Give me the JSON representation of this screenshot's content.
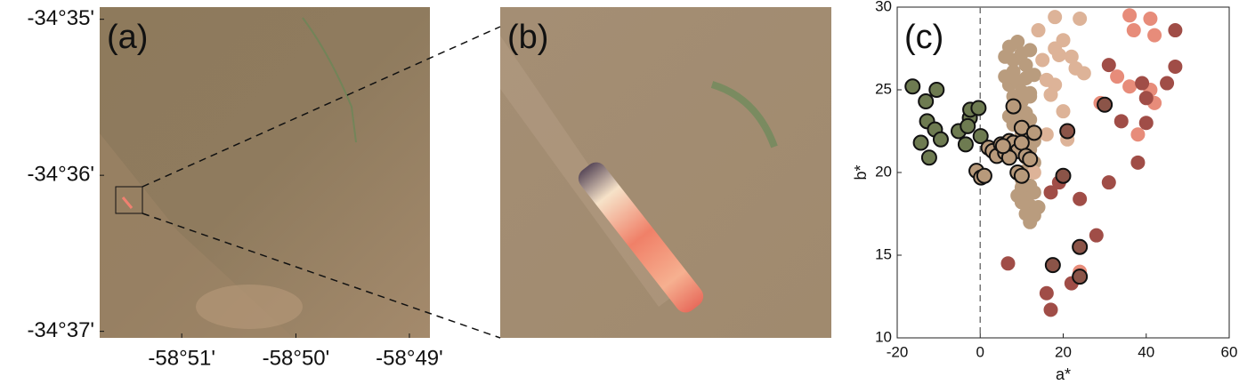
{
  "chart_data": [
    {
      "type": "image",
      "label": "(a)",
      "xlim": [
        -58.862,
        -58.8137
      ],
      "xticks": [
        {
          "value": -58.85,
          "label": "-58°51'"
        },
        {
          "value": -58.8333,
          "label": "-58°50'"
        },
        {
          "value": -58.8167,
          "label": "-58°49'"
        }
      ],
      "ylim": [
        -34.6174,
        -34.582
      ],
      "yticks": [
        {
          "value": -34.5833,
          "label": "-34°35'"
        },
        {
          "value": -34.6,
          "label": "-34°36'"
        },
        {
          "value": -34.6167,
          "label": "-34°37'"
        }
      ]
    },
    {
      "type": "image",
      "label": "(b)"
    },
    {
      "type": "scatter",
      "label": "(c)",
      "xlabel": "a*",
      "ylabel": "b*",
      "xlim": [
        -20,
        60
      ],
      "xticks": [
        -20,
        0,
        20,
        40,
        60
      ],
      "ylim": [
        10,
        30
      ],
      "yticks": [
        10,
        15,
        20,
        25,
        30
      ],
      "vline": 0,
      "series": [
        {
          "color": "#b99c7e",
          "edgecolor": "none",
          "x": [
            6,
            7,
            8,
            9,
            10,
            11,
            12,
            6,
            7,
            8,
            9,
            10,
            11,
            12,
            13,
            8,
            9,
            10,
            11,
            12,
            7,
            8,
            9,
            10,
            11,
            12,
            13,
            9,
            10,
            11,
            12,
            13,
            10,
            11,
            12,
            13,
            9,
            10,
            11,
            12,
            14,
            11,
            12,
            13,
            10
          ],
          "y": [
            27,
            27.6,
            26.8,
            27.9,
            27.2,
            26.5,
            27.4,
            25.8,
            25.3,
            26.1,
            25.5,
            24.9,
            25.7,
            24.6,
            25.9,
            24.6,
            23.8,
            24.3,
            23.6,
            24.8,
            23.4,
            22.9,
            23.1,
            23.7,
            22.8,
            23.2,
            21.9,
            21.6,
            22.3,
            20.9,
            21.4,
            20.6,
            19.6,
            20.1,
            19.2,
            18.8,
            18.6,
            19.1,
            18.4,
            18.0,
            17.9,
            17.5,
            17.0,
            17.4,
            18.2
          ]
        },
        {
          "color": "#ddb398",
          "edgecolor": "none",
          "x": [
            18,
            24,
            20,
            18,
            22,
            23,
            25,
            18,
            17,
            20,
            21,
            16,
            13,
            14,
            15,
            19,
            16
          ],
          "y": [
            29.4,
            29.3,
            28,
            27.5,
            27,
            26.3,
            26,
            25.3,
            24.7,
            23.7,
            22,
            22.3,
            20,
            28.6,
            26.8,
            27.1,
            25.6
          ]
        },
        {
          "color": "#e78c7a",
          "edgecolor": "none",
          "x": [
            36,
            41,
            42,
            37,
            33,
            36,
            41,
            38,
            42,
            29,
            24
          ],
          "y": [
            29.5,
            29.3,
            28.3,
            28.6,
            25.8,
            25.2,
            25,
            22.3,
            24.2,
            24.2,
            14
          ]
        },
        {
          "color": "#a04d47",
          "edgecolor": "none",
          "x": [
            31,
            47,
            47,
            45,
            39,
            40,
            34,
            40,
            38,
            31,
            19,
            17,
            24,
            28,
            22,
            16,
            17,
            6.7
          ],
          "y": [
            26.5,
            28.6,
            26.4,
            25.4,
            25.4,
            24.5,
            23.1,
            23,
            20.6,
            19.4,
            19.4,
            18.8,
            18.4,
            16.2,
            13.3,
            12.7,
            11.7,
            14.5
          ]
        },
        {
          "color": "#6e7b51",
          "edgecolor": "#111111",
          "x": [
            -16.3,
            -13.1,
            -10.5,
            -12.8,
            -10.9,
            -14.3,
            -9.5,
            -12.3,
            -5.2,
            -3.5,
            -2.5,
            -2.4,
            -0.4,
            0.1,
            -3
          ],
          "y": [
            25.2,
            24.3,
            25,
            23.1,
            22.6,
            21.8,
            22,
            20.9,
            22.5,
            21.7,
            23.3,
            23.8,
            23.9,
            22.2,
            22.8
          ]
        },
        {
          "color": "#b89a7b",
          "edgecolor": "#111111",
          "x": [
            -0.9,
            0.2,
            1,
            2,
            3,
            4,
            5,
            6,
            7,
            8,
            9,
            10,
            11,
            8,
            10,
            13,
            9,
            10,
            12,
            6,
            7,
            5.5
          ],
          "y": [
            20.1,
            19.7,
            19.8,
            21.5,
            21.3,
            21,
            21.7,
            21.5,
            21.9,
            21.8,
            21.3,
            21.8,
            21,
            24,
            22.7,
            22.4,
            20,
            19.8,
            20.8,
            21.2,
            20.9,
            21.6
          ]
        },
        {
          "color": "#8b5448",
          "edgecolor": "#111111",
          "x": [
            20,
            21,
            30,
            24,
            24,
            17.5
          ],
          "y": [
            19.8,
            22.5,
            24.1,
            15.5,
            13.7,
            14.4
          ]
        }
      ]
    }
  ]
}
